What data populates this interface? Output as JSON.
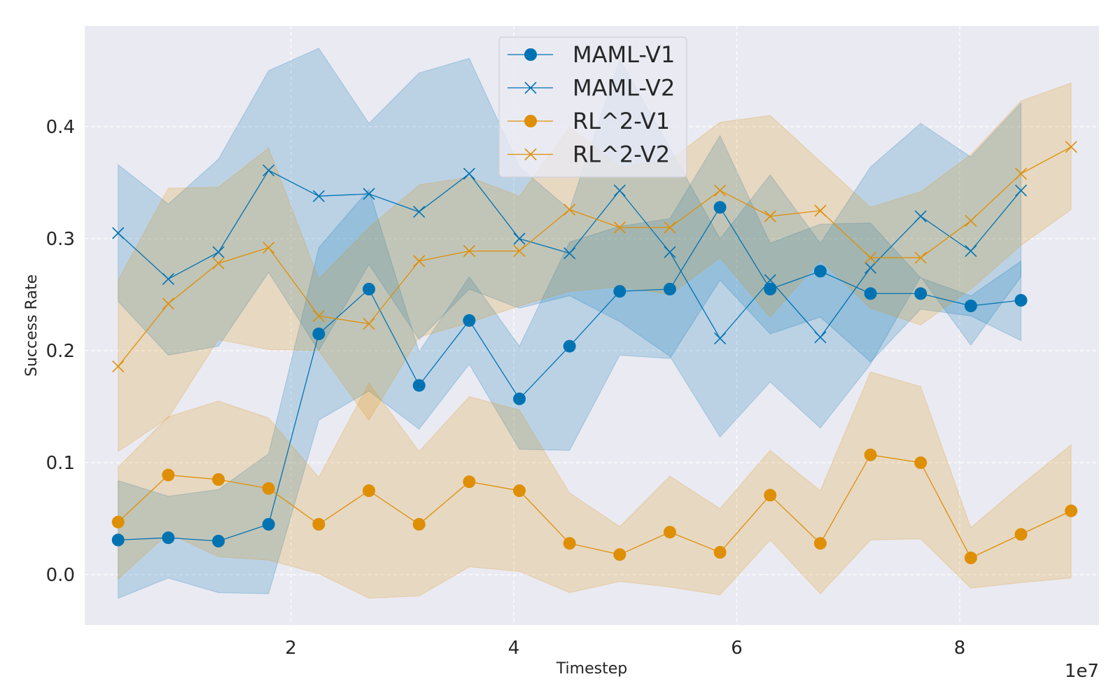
{
  "chart_data": {
    "type": "line",
    "xlabel": "Timestep",
    "ylabel": "Success Rate",
    "x_offset_label": "1e7",
    "xlim": [
      0.15,
      9.25
    ],
    "ylim": [
      -0.045,
      0.49
    ],
    "x_ticks": [
      2,
      4,
      6,
      8
    ],
    "x_tick_labels": [
      "2",
      "4",
      "6",
      "8"
    ],
    "y_ticks": [
      0.0,
      0.1,
      0.2,
      0.3,
      0.4
    ],
    "y_tick_labels": [
      "0.0",
      "0.1",
      "0.2",
      "0.3",
      "0.4"
    ],
    "grid": true,
    "legend_position": "top-center",
    "series": [
      {
        "name": "MAML-V1",
        "color": "#0173b2",
        "marker": "circle",
        "x": [
          0.45,
          0.9,
          1.35,
          1.8,
          2.25,
          2.7,
          3.15,
          3.6,
          4.05,
          4.5,
          4.95,
          5.4,
          5.85,
          6.3,
          6.75,
          7.2,
          7.65,
          8.1,
          8.55
        ],
        "values": [
          0.031,
          0.033,
          0.03,
          0.045,
          0.215,
          0.255,
          0.169,
          0.227,
          0.157,
          0.204,
          0.253,
          0.255,
          0.328,
          0.255,
          0.271,
          0.251,
          0.251,
          0.24,
          0.245
        ],
        "lower": [
          -0.021,
          -0.003,
          -0.016,
          -0.017,
          0.138,
          0.164,
          0.13,
          0.188,
          0.112,
          0.111,
          0.196,
          0.193,
          0.263,
          0.215,
          0.23,
          0.19,
          0.237,
          0.231,
          0.209
        ],
        "upper": [
          0.084,
          0.07,
          0.076,
          0.108,
          0.292,
          0.344,
          0.199,
          0.266,
          0.204,
          0.297,
          0.311,
          0.318,
          0.392,
          0.296,
          0.313,
          0.314,
          0.265,
          0.249,
          0.28
        ]
      },
      {
        "name": "MAML-V2",
        "color": "#0173b2",
        "marker": "x",
        "x": [
          0.45,
          0.9,
          1.35,
          1.8,
          2.25,
          2.7,
          3.15,
          3.6,
          4.05,
          4.5,
          4.95,
          5.4,
          5.85,
          6.3,
          6.75,
          7.2,
          7.65,
          8.1,
          8.55
        ],
        "values": [
          0.305,
          0.264,
          0.288,
          0.361,
          0.338,
          0.34,
          0.324,
          0.358,
          0.3,
          0.287,
          0.343,
          0.288,
          0.211,
          0.263,
          0.212,
          0.274,
          0.32,
          0.289,
          0.343
        ],
        "lower": [
          0.244,
          0.196,
          0.204,
          0.27,
          0.2,
          0.277,
          0.21,
          0.255,
          0.238,
          0.249,
          0.226,
          0.195,
          0.123,
          0.172,
          0.131,
          0.188,
          0.266,
          0.205,
          0.266
        ],
        "upper": [
          0.366,
          0.331,
          0.371,
          0.45,
          0.47,
          0.403,
          0.448,
          0.461,
          0.364,
          0.326,
          0.46,
          0.381,
          0.3,
          0.357,
          0.296,
          0.364,
          0.403,
          0.373,
          0.421
        ]
      },
      {
        "name": "RL^2-V1",
        "color": "#de8f05",
        "marker": "circle",
        "x": [
          0.45,
          0.9,
          1.35,
          1.8,
          2.25,
          2.7,
          3.15,
          3.6,
          4.05,
          4.5,
          4.95,
          5.4,
          5.85,
          6.3,
          6.75,
          7.2,
          7.65,
          8.1,
          8.55,
          9.0
        ],
        "values": [
          0.047,
          0.089,
          0.085,
          0.077,
          0.045,
          0.075,
          0.045,
          0.083,
          0.075,
          0.028,
          0.018,
          0.038,
          0.02,
          0.071,
          0.028,
          0.107,
          0.1,
          0.015,
          0.036,
          0.057
        ],
        "lower": [
          -0.004,
          0.037,
          0.016,
          0.013,
          0.001,
          -0.021,
          -0.019,
          0.007,
          0.003,
          -0.016,
          -0.006,
          -0.011,
          -0.018,
          0.031,
          -0.017,
          0.031,
          0.032,
          -0.012,
          -0.007,
          -0.003
        ],
        "upper": [
          0.096,
          0.141,
          0.155,
          0.14,
          0.087,
          0.171,
          0.11,
          0.159,
          0.147,
          0.073,
          0.043,
          0.088,
          0.059,
          0.111,
          0.075,
          0.181,
          0.168,
          0.042,
          0.08,
          0.116
        ]
      },
      {
        "name": "RL^2-V2",
        "color": "#de8f05",
        "marker": "x",
        "x": [
          0.45,
          0.9,
          1.35,
          1.8,
          2.25,
          2.7,
          3.15,
          3.6,
          4.05,
          4.5,
          4.95,
          5.4,
          5.85,
          6.3,
          6.75,
          7.2,
          7.65,
          8.1,
          8.55,
          9.0
        ],
        "values": [
          0.186,
          0.242,
          0.278,
          0.292,
          0.231,
          0.224,
          0.28,
          0.289,
          0.289,
          0.326,
          0.31,
          0.31,
          0.343,
          0.32,
          0.325,
          0.283,
          0.283,
          0.316,
          0.358,
          0.382
        ],
        "lower": [
          0.11,
          0.14,
          0.21,
          0.201,
          0.2,
          0.138,
          0.212,
          0.225,
          0.24,
          0.253,
          0.257,
          0.25,
          0.283,
          0.23,
          0.281,
          0.238,
          0.223,
          0.255,
          0.294,
          0.326
        ],
        "upper": [
          0.263,
          0.345,
          0.346,
          0.381,
          0.264,
          0.31,
          0.348,
          0.355,
          0.338,
          0.4,
          0.364,
          0.37,
          0.404,
          0.41,
          0.369,
          0.328,
          0.342,
          0.375,
          0.423,
          0.439
        ]
      }
    ]
  }
}
